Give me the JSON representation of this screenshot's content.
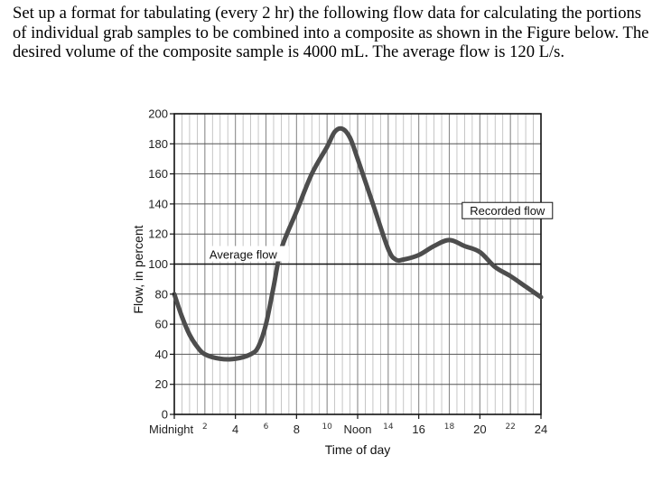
{
  "problem": {
    "text": "Set up a format for tabulating (every 2 hr) the following flow data for calculating the portions of individual grab samples to be combined into a composite as shown in the Figure below.  The desired volume of the composite sample is 4000 mL.  The average flow is 120 L/s."
  },
  "chart_data": {
    "type": "line",
    "title": "",
    "xlabel": "Time of day",
    "ylabel": "Flow, in percent",
    "xlim": [
      0,
      24
    ],
    "ylim": [
      0,
      200
    ],
    "y_ticks": [
      0,
      20,
      40,
      60,
      80,
      100,
      120,
      140,
      160,
      180,
      200
    ],
    "y_tick_labels": [
      "0",
      "20",
      "40",
      "60",
      "80",
      "100",
      "120",
      "140",
      "160",
      "180",
      "200"
    ],
    "x_ticks": [
      {
        "x": 0,
        "label": "Midnight",
        "style": "printed"
      },
      {
        "x": 2,
        "label": "2",
        "style": "handwritten"
      },
      {
        "x": 4,
        "label": "4",
        "style": "printed"
      },
      {
        "x": 6,
        "label": "6",
        "style": "handwritten"
      },
      {
        "x": 8,
        "label": "8",
        "style": "printed"
      },
      {
        "x": 10,
        "label": "10",
        "style": "handwritten"
      },
      {
        "x": 12,
        "label": "Noon",
        "style": "printed"
      },
      {
        "x": 14,
        "label": "14",
        "style": "handwritten"
      },
      {
        "x": 16,
        "label": "16",
        "style": "printed"
      },
      {
        "x": 18,
        "label": "18",
        "style": "handwritten"
      },
      {
        "x": 20,
        "label": "20",
        "style": "printed"
      },
      {
        "x": 22,
        "label": "22",
        "style": "handwritten"
      },
      {
        "x": 24,
        "label": "24",
        "style": "printed"
      }
    ],
    "series": [
      {
        "name": "Recorded flow",
        "x": [
          0,
          0.5,
          1,
          1.5,
          2,
          3,
          4,
          5,
          5.5,
          6,
          6.5,
          7,
          8,
          9,
          10,
          10.5,
          11,
          11.5,
          12,
          13,
          14,
          14.5,
          15,
          16,
          17,
          18,
          19,
          20,
          21,
          22,
          23,
          24
        ],
        "y": [
          80,
          65,
          53,
          45,
          40,
          37,
          37,
          40,
          45,
          60,
          85,
          110,
          135,
          160,
          178,
          188,
          190,
          184,
          170,
          140,
          110,
          103,
          103,
          106,
          112,
          116,
          112,
          108,
          98,
          92,
          85,
          78
        ]
      }
    ],
    "reference_lines": [
      {
        "name": "Average flow",
        "y": 100
      }
    ],
    "annotations": [
      {
        "text": "Average flow",
        "x": 2.3,
        "y": 106
      },
      {
        "text": "Recorded flow",
        "x": 21.8,
        "y": 135
      }
    ],
    "grid": true
  }
}
